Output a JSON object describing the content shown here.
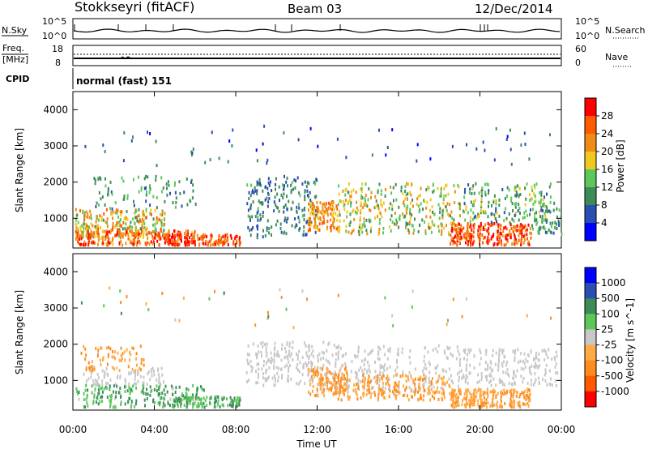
{
  "header": {
    "station": "Stokkseyri (fitACF)",
    "beam": "Beam 03",
    "date": "12/Dec/2014"
  },
  "noise_panel": {
    "left_label": "N.Sky",
    "right_label": "N.Search",
    "left_ticks": [
      "10^5",
      "10^0"
    ],
    "right_ticks": [
      "10^5",
      "10^0"
    ]
  },
  "freq_panel": {
    "left_label_line1": "Freq.",
    "left_label_line2": "[MHz]",
    "right_label": "Nave",
    "left_ticks": [
      "18",
      "8"
    ],
    "right_ticks": [
      "60",
      "0"
    ]
  },
  "cpid": {
    "label": "CPID",
    "value": "normal (fast) 151"
  },
  "time_axis": {
    "title": "Time UT",
    "ticks": [
      "00:00",
      "04:00",
      "08:00",
      "12:00",
      "16:00",
      "20:00",
      "00:00"
    ]
  },
  "colors": {
    "power_scale": [
      "#0000ff",
      "#2b4fb0",
      "#3c8c5a",
      "#5cc85c",
      "#f0c820",
      "#f08c14",
      "#ff5a00",
      "#ff0000"
    ],
    "velocity_scale": [
      "#ff0000",
      "#ff5a00",
      "#ff8c1e",
      "#ffaa46",
      "#c8c8c8",
      "#5cc85c",
      "#3c8c5a",
      "#2b4fb0",
      "#0000ff"
    ]
  },
  "chart_data": [
    {
      "type": "heatmap",
      "title": "",
      "xlabel": "Time UT",
      "ylabel": "Slant Range [km]",
      "x_ticks": [
        "00:00",
        "04:00",
        "08:00",
        "12:00",
        "16:00",
        "20:00",
        "00:00"
      ],
      "y_ticks": [
        1000,
        2000,
        3000,
        4000
      ],
      "xlim": [
        0,
        24
      ],
      "ylim": [
        180,
        4500
      ],
      "colorbar": {
        "label": "Power [dB]",
        "ticks": [
          "28",
          "24",
          "20",
          "16",
          "12",
          "8",
          "4"
        ],
        "range": [
          0,
          30
        ]
      }
    },
    {
      "type": "heatmap",
      "title": "",
      "xlabel": "Time UT",
      "ylabel": "Slant Range [km]",
      "x_ticks": [
        "00:00",
        "04:00",
        "08:00",
        "12:00",
        "16:00",
        "20:00",
        "00:00"
      ],
      "y_ticks": [
        1000,
        2000,
        3000,
        4000
      ],
      "xlim": [
        0,
        24
      ],
      "ylim": [
        180,
        4500
      ],
      "colorbar": {
        "label": "Velocity [m s^-1]",
        "ticks": [
          "1000",
          "500",
          "100",
          "25",
          "-25",
          "-100",
          "-500",
          "-1000"
        ],
        "range": [
          -1000,
          1000
        ]
      }
    }
  ]
}
